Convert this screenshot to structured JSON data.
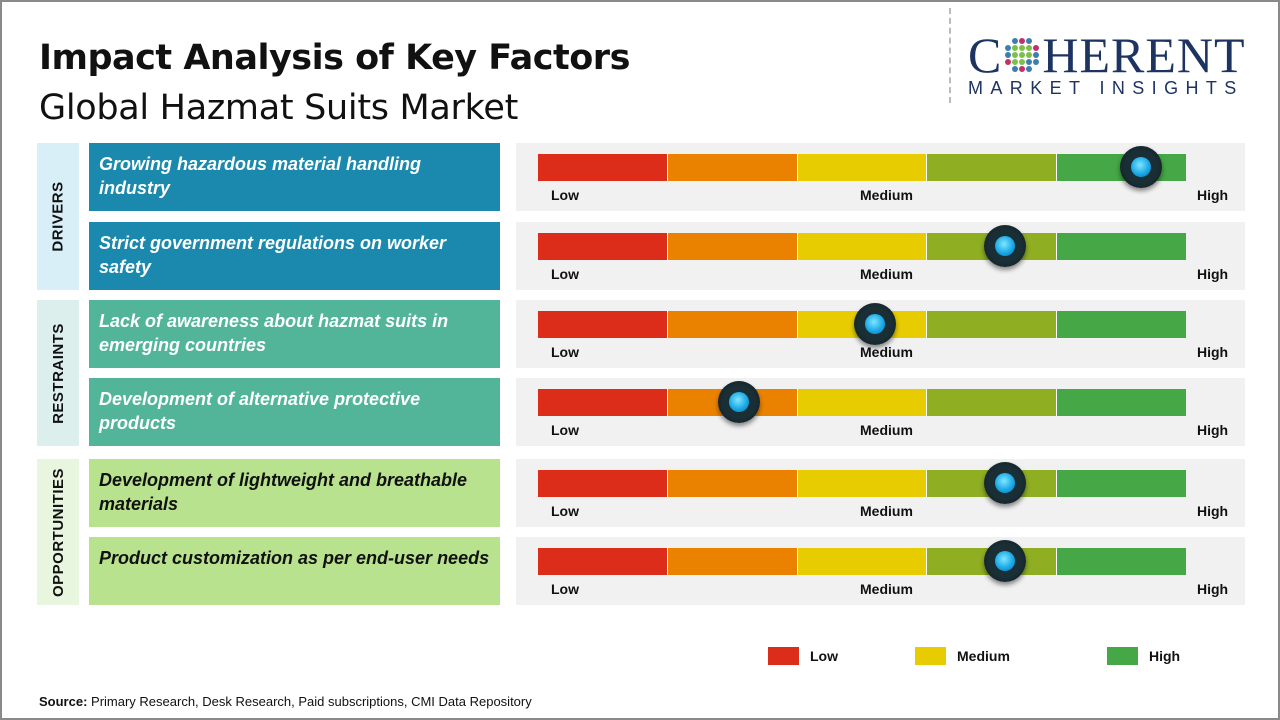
{
  "title": "Impact Analysis of Key Factors",
  "subtitle": "Global Hazmat Suits Market",
  "logo": {
    "main": "COHERENT",
    "sub": "MARKET INSIGHTS"
  },
  "scale_labels": {
    "low": "Low",
    "medium": "Medium",
    "high": "High"
  },
  "scale_colors": [
    "#dc2d1a",
    "#ea8200",
    "#e6cc00",
    "#8fae22",
    "#45a745"
  ],
  "categories": [
    {
      "label": "DRIVERS",
      "bg": "#d8eff8",
      "box": "#1a89ad",
      "text": "#ffffff",
      "factors": [
        {
          "text": "Growing hazardous material handling industry",
          "impact": 0.93
        },
        {
          "text": "Strict government regulations on worker safety",
          "impact": 0.72
        }
      ]
    },
    {
      "label": "RESTRAINTS",
      "bg": "#dcefec",
      "box": "#52b59a",
      "text": "#ffffff",
      "factors": [
        {
          "text": "Lack of awareness about hazmat suits in emerging countries",
          "impact": 0.52
        },
        {
          "text": "Development of alternative protective products",
          "impact": 0.31
        }
      ]
    },
    {
      "label": "OPPORTUNITIES",
      "bg": "#e8f5df",
      "box": "#b8e28e",
      "text": "#111111",
      "factors": [
        {
          "text": "Development of lightweight and breathable materials",
          "impact": 0.72
        },
        {
          "text": "Product customization as per end-user needs",
          "impact": 0.72
        }
      ]
    }
  ],
  "legend": [
    {
      "label": "Low",
      "color": "#dc2d1a"
    },
    {
      "label": "Medium",
      "color": "#e6cc00"
    },
    {
      "label": "High",
      "color": "#45a745"
    }
  ],
  "source": {
    "label": "Source:",
    "text": "Primary Research, Desk Research, Paid subscriptions, CMI Data Repository"
  }
}
